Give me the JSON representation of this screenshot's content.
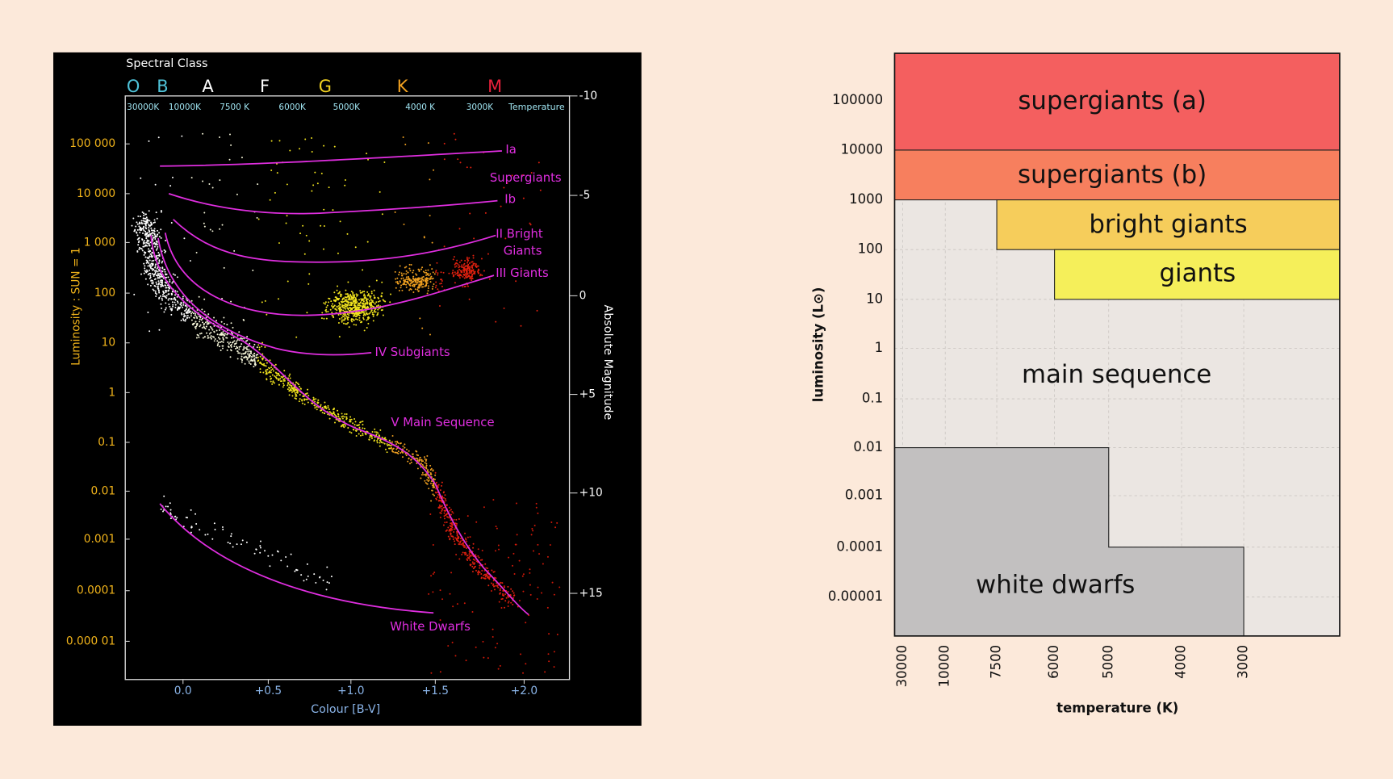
{
  "left_diagram": {
    "spectral_class_title": "Spectral Class",
    "spectral_classes": [
      "O",
      "B",
      "A",
      "F",
      "G",
      "K",
      "M"
    ],
    "temperatures": [
      "30000K",
      "10000K",
      "7500 K",
      "6000K",
      "5000K",
      "4000 K",
      "3000K"
    ],
    "temperature_label": "Temperature",
    "luminosity_ticks": [
      "100 000",
      "10 000",
      "1 000",
      "100",
      "10",
      "1",
      "0.1",
      "0.01",
      "0.001",
      "0.0001",
      "0.000 01"
    ],
    "luminosity_label": "Luminosity : SUN = 1",
    "magnitude_ticks": [
      "-10",
      "-5",
      "0",
      "+5",
      "+10",
      "+15"
    ],
    "magnitude_label": "Absolute Magnitude",
    "colour_ticks": [
      "0.0",
      "+0.5",
      "+1.0",
      "+1.5",
      "+2.0"
    ],
    "colour_label": "Colour [B-V]",
    "branch_labels": [
      "Ia",
      "Supergiants",
      "Ib",
      "II Bright",
      "Giants",
      "III Giants",
      "IV Subgiants",
      "V Main Sequence",
      "White Dwarfs"
    ]
  },
  "right_diagram": {
    "luminosity_ticks": [
      "100000",
      "10000",
      "1000",
      "100",
      "10",
      "1",
      "0.1",
      "0.01",
      "0.001",
      "0.0001",
      "0.00001"
    ],
    "temperature_ticks": [
      "30000",
      "10000",
      "7500",
      "6000",
      "5000",
      "4000",
      "3000"
    ],
    "y_axis_label": "luminosity (L⊙)",
    "x_axis_label": "temperature (K)",
    "regions": [
      "supergiants (a)",
      "supergiants (b)",
      "bright giants",
      "giants",
      "main sequence",
      "white dwarfs"
    ]
  }
}
